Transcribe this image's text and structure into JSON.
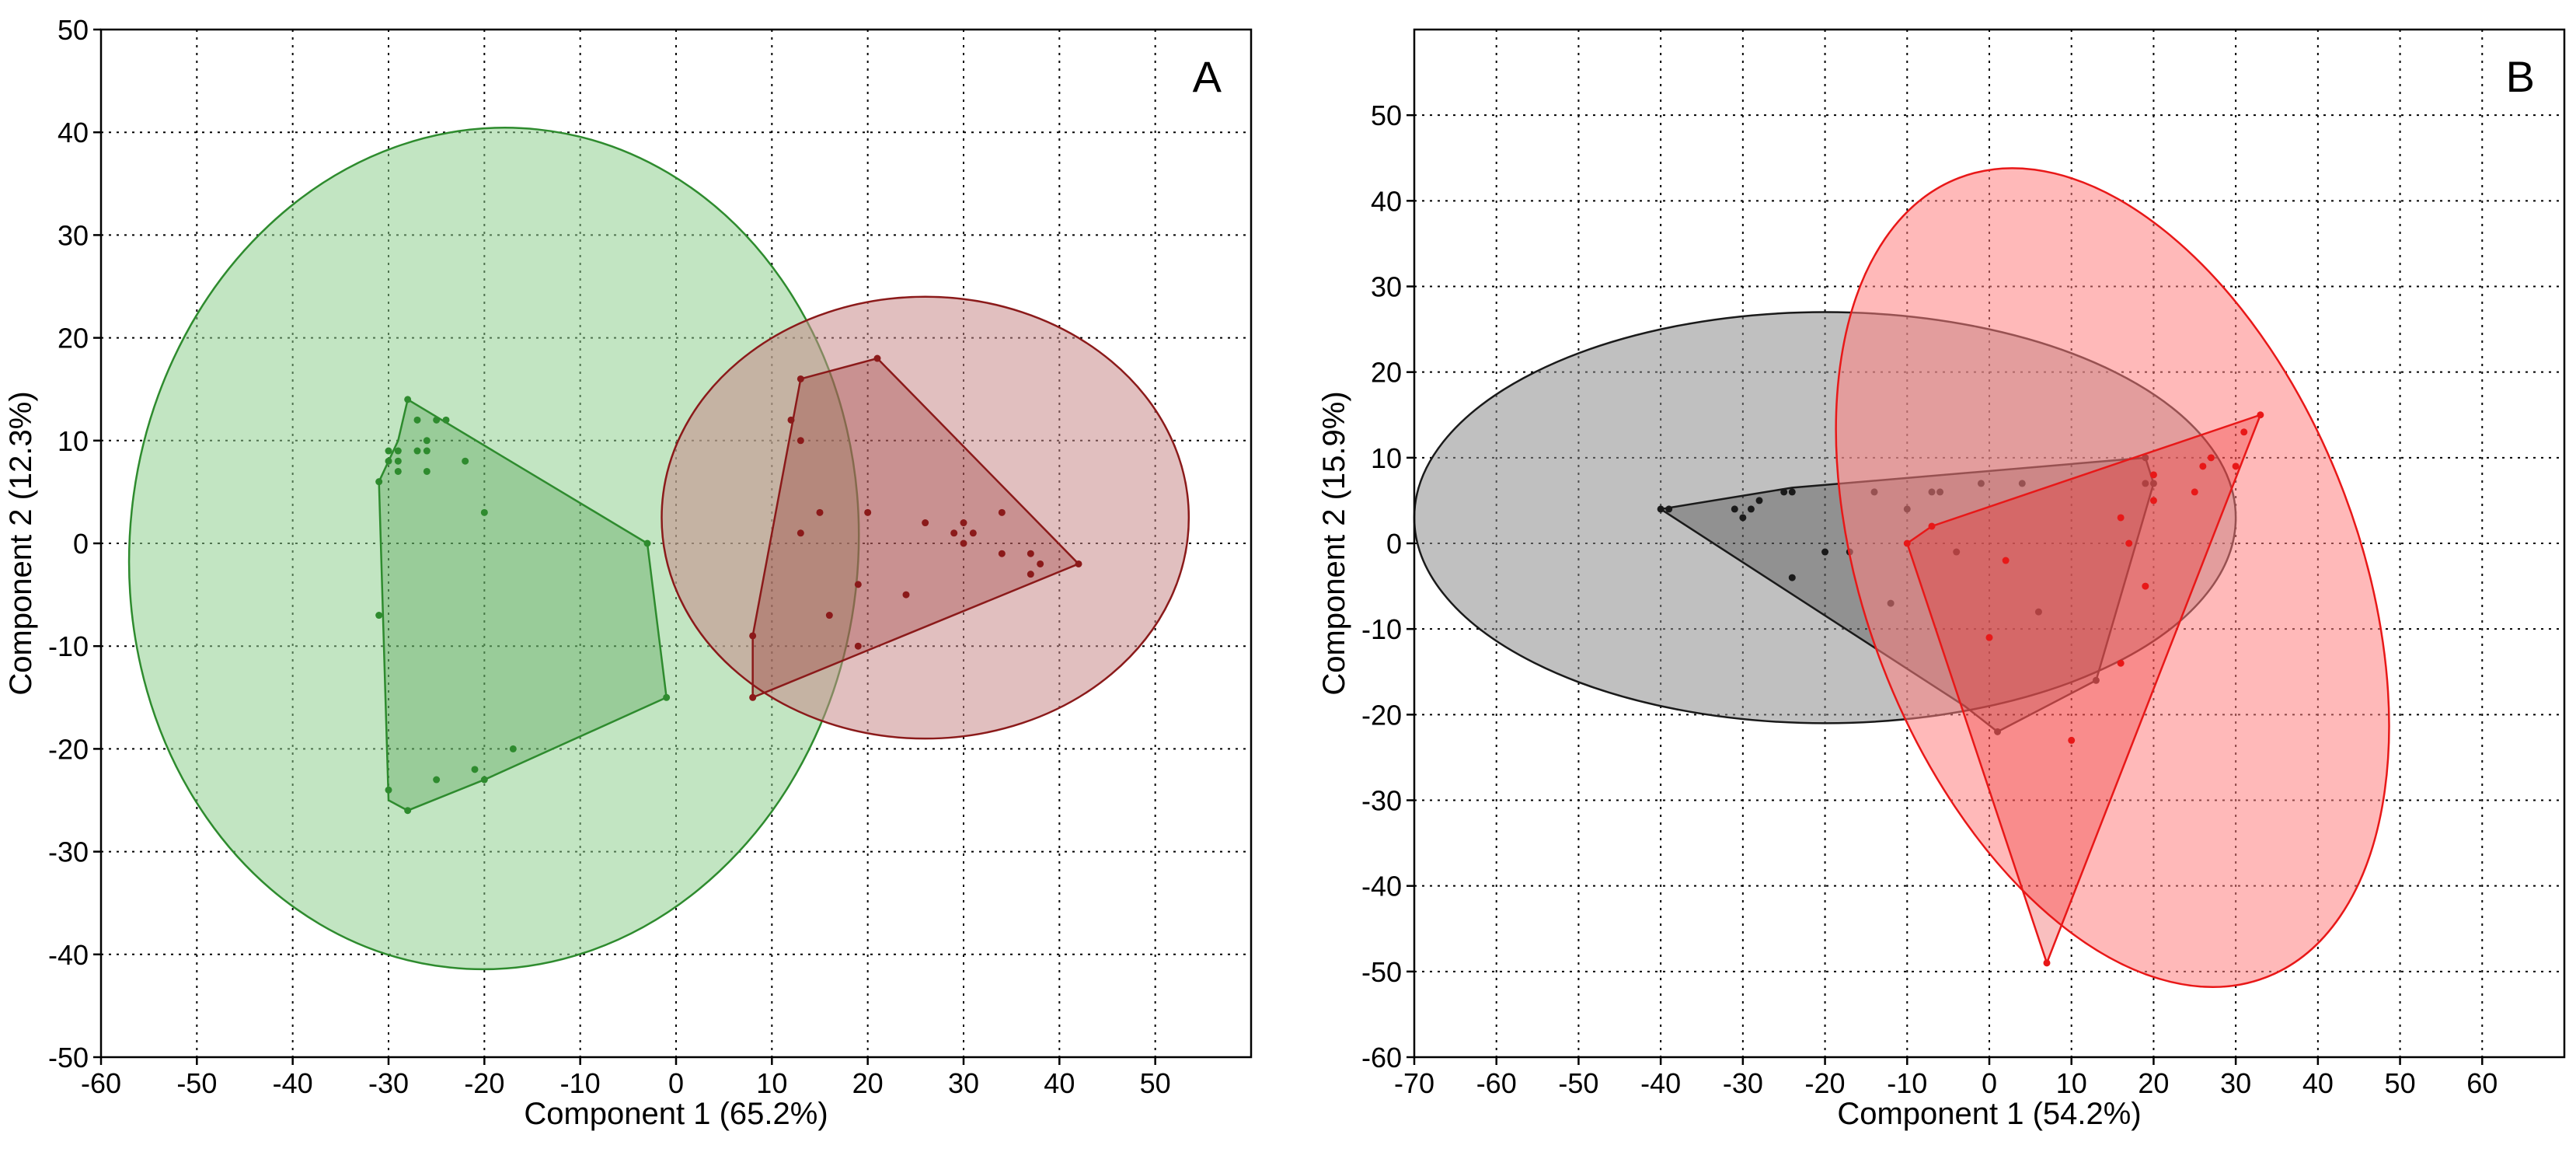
{
  "chart_data": [
    {
      "type": "scatter",
      "panel_label": "A",
      "xlabel": "Component 1 (65.2%)",
      "ylabel": "Component 2 (12.3%)",
      "xlim": [
        -60,
        60
      ],
      "ylim": [
        -50,
        50
      ],
      "xticks": [
        -60,
        -50,
        -40,
        -30,
        -20,
        -10,
        0,
        10,
        20,
        30,
        40,
        50
      ],
      "yticks": [
        -50,
        -40,
        -30,
        -20,
        -10,
        0,
        10,
        20,
        30,
        40,
        50
      ],
      "grid": true,
      "series": [
        {
          "color": "#2e8b2e",
          "fill": "#8fcf8f",
          "points": [
            [
              -28,
              14
            ],
            [
              -27,
              12
            ],
            [
              -26,
              10
            ],
            [
              -25,
              12
            ],
            [
              -29,
              9
            ],
            [
              -30,
              9
            ],
            [
              -30,
              8
            ],
            [
              -29,
              8
            ],
            [
              -27,
              9
            ],
            [
              -26,
              9
            ],
            [
              -24,
              12
            ],
            [
              -22,
              8
            ],
            [
              -29,
              7
            ],
            [
              -26,
              7
            ],
            [
              -31,
              6
            ],
            [
              -20,
              3
            ],
            [
              -31,
              -7
            ],
            [
              -3,
              0
            ],
            [
              -1,
              -15
            ],
            [
              -17,
              -20
            ],
            [
              -21,
              -22
            ],
            [
              -20,
              -23
            ],
            [
              -25,
              -23
            ],
            [
              -30,
              -24
            ],
            [
              -28,
              -26
            ]
          ],
          "hull": [
            [
              -28,
              14
            ],
            [
              -3,
              0
            ],
            [
              -1,
              -15
            ],
            [
              -20,
              -23
            ],
            [
              -28,
              -26
            ],
            [
              -30,
              -25
            ],
            [
              -31,
              6
            ],
            [
              -29,
              10
            ]
          ],
          "ellipse": {
            "cx": -19,
            "cy": -0.5,
            "rx": 38,
            "ry": 41,
            "angle_deg": -6
          }
        },
        {
          "color": "#8b1a1a",
          "fill": "#c98a8a",
          "points": [
            [
              13,
              16
            ],
            [
              21,
              18
            ],
            [
              12,
              12
            ],
            [
              13,
              10
            ],
            [
              15,
              3
            ],
            [
              20,
              3
            ],
            [
              13,
              1
            ],
            [
              26,
              2
            ],
            [
              29,
              1
            ],
            [
              30,
              2
            ],
            [
              31,
              1
            ],
            [
              30,
              0
            ],
            [
              34,
              3
            ],
            [
              37,
              -1
            ],
            [
              38,
              -2
            ],
            [
              37,
              -3
            ],
            [
              42,
              -2
            ],
            [
              34,
              -1
            ],
            [
              19,
              -4
            ],
            [
              24,
              -5
            ],
            [
              16,
              -7
            ],
            [
              19,
              -10
            ],
            [
              8,
              -9
            ],
            [
              8,
              -15
            ]
          ],
          "hull": [
            [
              13,
              16
            ],
            [
              21,
              18
            ],
            [
              42,
              -2
            ],
            [
              8,
              -15
            ],
            [
              8,
              -9
            ]
          ],
          "ellipse": {
            "cx": 26,
            "cy": 2.5,
            "rx": 27.5,
            "ry": 21.5,
            "angle_deg": 0
          }
        }
      ]
    },
    {
      "type": "scatter",
      "panel_label": "B",
      "xlabel": "Component 1 (54.2%)",
      "ylabel": "Component 2 (15.9%)",
      "xlim": [
        -70,
        70
      ],
      "ylim": [
        -60,
        60
      ],
      "xticks": [
        -70,
        -60,
        -50,
        -40,
        -30,
        -20,
        -10,
        0,
        10,
        20,
        30,
        40,
        50,
        60
      ],
      "yticks": [
        -60,
        -50,
        -40,
        -30,
        -20,
        -10,
        0,
        10,
        20,
        30,
        40,
        50
      ],
      "grid": true,
      "series": [
        {
          "color": "#1a1a1a",
          "fill": "#8c8c8c",
          "points": [
            [
              -40,
              4
            ],
            [
              -39,
              4
            ],
            [
              -31,
              4
            ],
            [
              -30,
              3
            ],
            [
              -29,
              4
            ],
            [
              -28,
              5
            ],
            [
              -25,
              6
            ],
            [
              -24,
              6
            ],
            [
              -20,
              -1
            ],
            [
              -17,
              -1
            ],
            [
              -14,
              6
            ],
            [
              -12,
              -7
            ],
            [
              -10,
              4
            ],
            [
              -7,
              6
            ],
            [
              -6,
              6
            ],
            [
              -4,
              -1
            ],
            [
              -1,
              7
            ],
            [
              4,
              7
            ],
            [
              6,
              -8
            ],
            [
              13,
              -16
            ],
            [
              19,
              7
            ],
            [
              20,
              7
            ],
            [
              19,
              10
            ],
            [
              1,
              -22
            ],
            [
              -24,
              -4
            ]
          ],
          "hull": [
            [
              -40,
              4
            ],
            [
              -24,
              6.5
            ],
            [
              19,
              10
            ],
            [
              20,
              7
            ],
            [
              13,
              -16
            ],
            [
              1,
              -22
            ],
            [
              -3,
              -19
            ]
          ],
          "ellipse": {
            "cx": -20,
            "cy": 3,
            "rx": 50,
            "ry": 24,
            "angle_deg": 0
          }
        },
        {
          "color": "#e81818",
          "fill": "#ff7f7f",
          "points": [
            [
              -10,
              0
            ],
            [
              -7,
              2
            ],
            [
              2,
              -2
            ],
            [
              0,
              -11
            ],
            [
              10,
              -23
            ],
            [
              16,
              -14
            ],
            [
              16,
              3
            ],
            [
              17,
              0
            ],
            [
              19,
              -5
            ],
            [
              20,
              5
            ],
            [
              20,
              8
            ],
            [
              25,
              6
            ],
            [
              26,
              9
            ],
            [
              27,
              10
            ],
            [
              30,
              9
            ],
            [
              31,
              13
            ],
            [
              33,
              15
            ],
            [
              7,
              -49
            ]
          ],
          "hull": [
            [
              -10,
              0
            ],
            [
              -7,
              2
            ],
            [
              33,
              15
            ],
            [
              7,
              -49
            ]
          ],
          "ellipse": {
            "cx": 15,
            "cy": -4,
            "rx": 30,
            "ry": 50,
            "angle_deg": 21
          }
        }
      ]
    }
  ]
}
